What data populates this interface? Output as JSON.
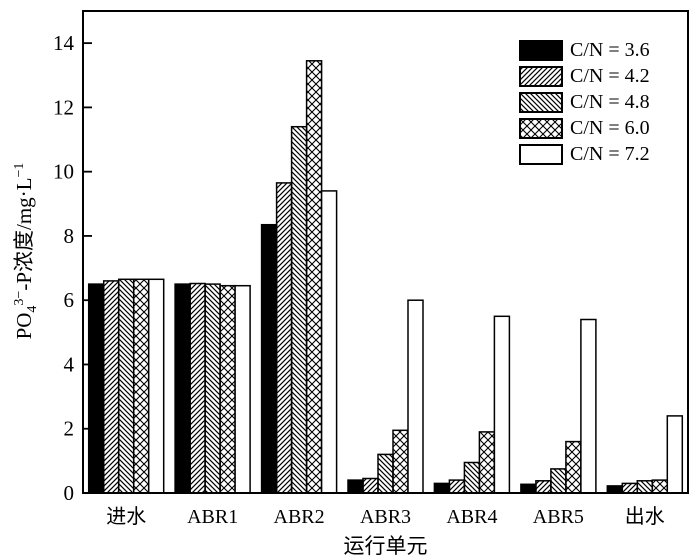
{
  "chart_data": {
    "type": "bar",
    "title": "",
    "xlabel": "运行单元",
    "ylabel": "PO₄³⁻-P浓度/mg·L⁻¹",
    "ylabel_parts": {
      "p1": "PO",
      "sub": "4",
      "sup": "3−",
      "p2": "-P浓度/mg·L",
      "sup2": "−1"
    },
    "ylim": [
      0,
      15
    ],
    "yticks": [
      0,
      2,
      4,
      6,
      8,
      10,
      12,
      14
    ],
    "grid": false,
    "legend_position": "top-right-inside",
    "axis_color": "#000000",
    "background": "#ffffff",
    "categories": [
      "进水",
      "ABR1",
      "ABR2",
      "ABR3",
      "ABR4",
      "ABR5",
      "出水"
    ],
    "series": [
      {
        "label": "C/N = 3.6",
        "pattern": "solid",
        "color": "#000000",
        "values": [
          6.5,
          6.5,
          8.35,
          0.4,
          0.3,
          0.27,
          0.22
        ]
      },
      {
        "label": "C/N = 4.2",
        "pattern": "diagonal-forward",
        "color": "#000000",
        "values": [
          6.6,
          6.52,
          9.65,
          0.45,
          0.4,
          0.38,
          0.3
        ]
      },
      {
        "label": "C/N = 4.8",
        "pattern": "diagonal-backward",
        "color": "#000000",
        "values": [
          6.65,
          6.5,
          11.4,
          1.2,
          0.95,
          0.75,
          0.38
        ]
      },
      {
        "label": "C/N = 6.0",
        "pattern": "crosshatch",
        "color": "#000000",
        "values": [
          6.65,
          6.45,
          13.45,
          1.95,
          1.9,
          1.6,
          0.4
        ]
      },
      {
        "label": "C/N = 7.2",
        "pattern": "open",
        "color": "#000000",
        "values": [
          6.65,
          6.45,
          9.4,
          6.0,
          5.5,
          5.4,
          2.4
        ]
      }
    ]
  }
}
